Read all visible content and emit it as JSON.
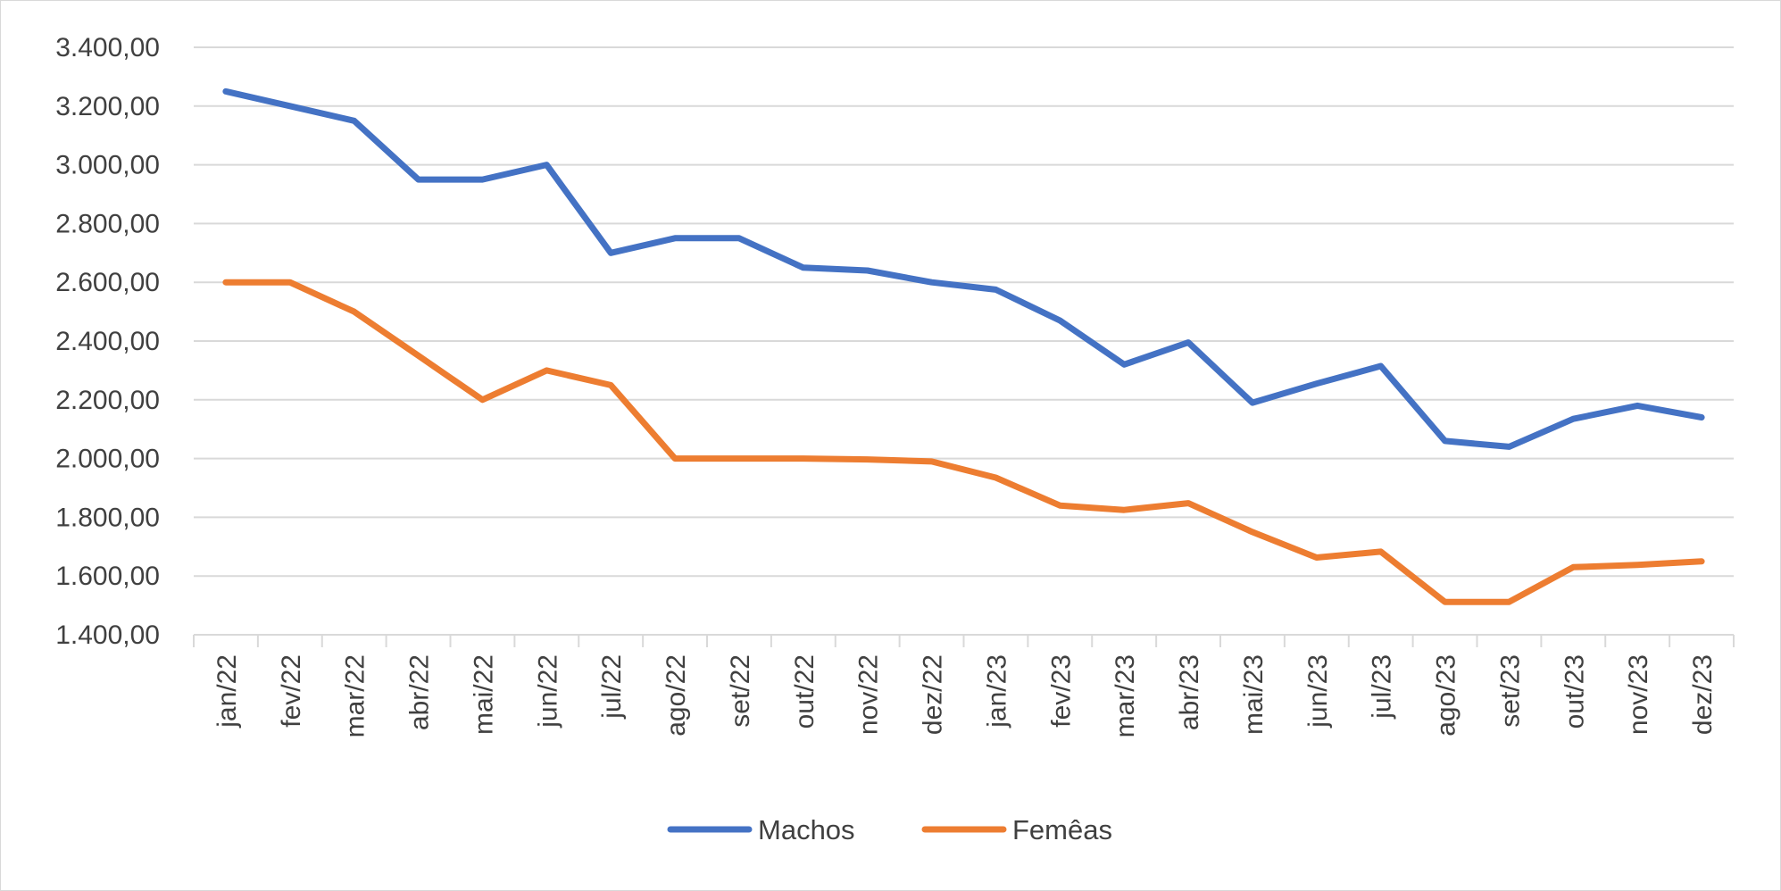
{
  "chart_data": {
    "type": "line",
    "title": "",
    "xlabel": "",
    "ylabel": "",
    "ylim": [
      1400,
      3400
    ],
    "ytick_step": 200,
    "grid": true,
    "legend_position": "bottom",
    "y_tick_labels": [
      "1.400,00",
      "1.600,00",
      "1.800,00",
      "2.000,00",
      "2.200,00",
      "2.400,00",
      "2.600,00",
      "2.800,00",
      "3.000,00",
      "3.200,00",
      "3.400,00"
    ],
    "categories": [
      "jan/22",
      "fev/22",
      "mar/22",
      "abr/22",
      "mai/22",
      "jun/22",
      "jul/22",
      "ago/22",
      "set/22",
      "out/22",
      "nov/22",
      "dez/22",
      "jan/23",
      "fev/23",
      "mar/23",
      "abr/23",
      "mai/23",
      "jun/23",
      "jul/23",
      "ago/23",
      "set/23",
      "out/23",
      "nov/23",
      "dez/23"
    ],
    "series": [
      {
        "name": "Machos",
        "color": "#4472c4",
        "values": [
          3250,
          3200,
          3150,
          2950,
          2950,
          3000,
          2700,
          2750,
          2750,
          2650,
          2640,
          2600,
          2575,
          2470,
          2320,
          2395,
          2190,
          2255,
          2315,
          2060,
          2040,
          2135,
          2180,
          2140
        ]
      },
      {
        "name": "Femêas",
        "color": "#ed7d31",
        "values": [
          2600,
          2600,
          2500,
          2350,
          2200,
          2300,
          2250,
          2000,
          2000,
          2000,
          1997,
          1990,
          1935,
          1840,
          1825,
          1848,
          1750,
          1663,
          1683,
          1512,
          1512,
          1630,
          1638,
          1650
        ]
      }
    ]
  }
}
